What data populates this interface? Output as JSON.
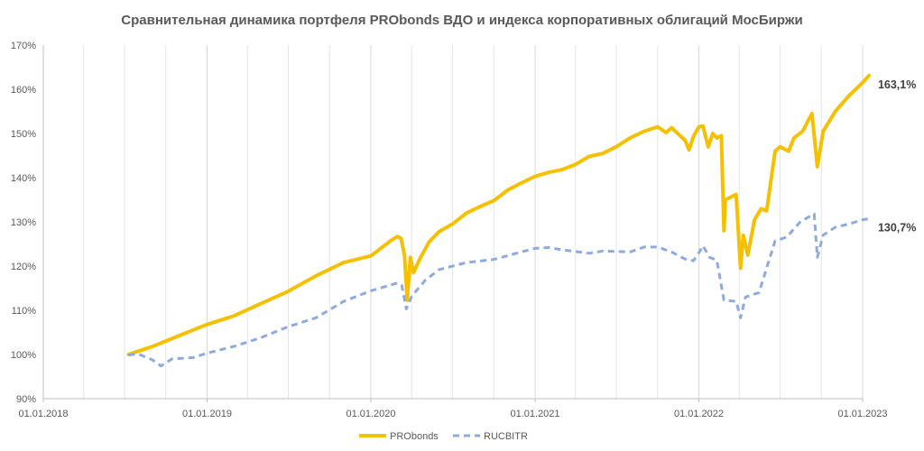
{
  "chart_data": {
    "type": "line",
    "title": "Сравнительная динамика портфеля PRObonds ВДО и индекса корпоративных облигаций МосБиржи",
    "xlabel": "",
    "ylabel": "",
    "x_range": [
      "2018-01-01",
      "2023-01-01"
    ],
    "x_ticks": [
      {
        "date": "2018-01-01",
        "label": "01.01.2018"
      },
      {
        "date": "2019-01-01",
        "label": "01.01.2019"
      },
      {
        "date": "2020-01-01",
        "label": "01.01.2020"
      },
      {
        "date": "2021-01-01",
        "label": "01.01.2021"
      },
      {
        "date": "2022-01-01",
        "label": "01.01.2022"
      },
      {
        "date": "2023-01-01",
        "label": "01.01.2023"
      }
    ],
    "ylim": [
      90,
      170
    ],
    "y_ticks": [
      {
        "value": 90,
        "label": "90%"
      },
      {
        "value": 100,
        "label": "100%"
      },
      {
        "value": 110,
        "label": "110%"
      },
      {
        "value": 120,
        "label": "120%"
      },
      {
        "value": 130,
        "label": "130%"
      },
      {
        "value": 140,
        "label": "140%"
      },
      {
        "value": 150,
        "label": "150%"
      },
      {
        "value": 160,
        "label": "160%"
      },
      {
        "value": 170,
        "label": "170%"
      }
    ],
    "grid": "vertical",
    "legend_position": "bottom",
    "series": [
      {
        "name": "PRObonds",
        "color": "#F5C000",
        "style": "solid",
        "end_label": "163,1%",
        "points": [
          [
            "2018-07-10",
            100.0
          ],
          [
            "2018-09-01",
            101.8
          ],
          [
            "2018-11-01",
            104.3
          ],
          [
            "2019-01-01",
            106.8
          ],
          [
            "2019-03-01",
            108.7
          ],
          [
            "2019-05-01",
            111.5
          ],
          [
            "2019-07-01",
            114.3
          ],
          [
            "2019-09-01",
            117.8
          ],
          [
            "2019-11-01",
            120.8
          ],
          [
            "2020-01-01",
            122.3
          ],
          [
            "2020-02-15",
            125.8
          ],
          [
            "2020-02-29",
            126.7
          ],
          [
            "2020-03-08",
            126.3
          ],
          [
            "2020-03-16",
            122.5
          ],
          [
            "2020-03-22",
            112.3
          ],
          [
            "2020-03-29",
            122.0
          ],
          [
            "2020-04-05",
            118.5
          ],
          [
            "2020-04-20",
            121.8
          ],
          [
            "2020-05-10",
            125.5
          ],
          [
            "2020-06-01",
            127.8
          ],
          [
            "2020-07-01",
            129.5
          ],
          [
            "2020-08-01",
            132.0
          ],
          [
            "2020-09-01",
            133.5
          ],
          [
            "2020-10-01",
            134.8
          ],
          [
            "2020-11-01",
            137.2
          ],
          [
            "2020-12-01",
            138.8
          ],
          [
            "2021-01-01",
            140.3
          ],
          [
            "2021-02-01",
            141.2
          ],
          [
            "2021-03-01",
            141.8
          ],
          [
            "2021-04-01",
            143.0
          ],
          [
            "2021-05-01",
            144.8
          ],
          [
            "2021-06-01",
            145.5
          ],
          [
            "2021-07-01",
            147.0
          ],
          [
            "2021-08-01",
            149.0
          ],
          [
            "2021-09-01",
            150.5
          ],
          [
            "2021-10-01",
            151.5
          ],
          [
            "2021-10-20",
            150.2
          ],
          [
            "2021-11-01",
            151.3
          ],
          [
            "2021-11-20",
            149.5
          ],
          [
            "2021-12-01",
            148.5
          ],
          [
            "2021-12-10",
            146.3
          ],
          [
            "2021-12-20",
            149.3
          ],
          [
            "2022-01-01",
            151.5
          ],
          [
            "2022-01-10",
            151.7
          ],
          [
            "2022-01-22",
            147.0
          ],
          [
            "2022-02-01",
            150.0
          ],
          [
            "2022-02-10",
            149.0
          ],
          [
            "2022-02-20",
            149.5
          ],
          [
            "2022-02-26",
            128.0
          ],
          [
            "2022-03-01",
            135.0
          ],
          [
            "2022-03-25",
            136.2
          ],
          [
            "2022-04-04",
            119.5
          ],
          [
            "2022-04-10",
            127.0
          ],
          [
            "2022-04-20",
            122.5
          ],
          [
            "2022-05-05",
            130.5
          ],
          [
            "2022-05-20",
            133.0
          ],
          [
            "2022-06-01",
            132.5
          ],
          [
            "2022-06-20",
            146.0
          ],
          [
            "2022-07-01",
            147.0
          ],
          [
            "2022-07-20",
            146.0
          ],
          [
            "2022-08-01",
            149.0
          ],
          [
            "2022-08-20",
            150.5
          ],
          [
            "2022-09-10",
            154.5
          ],
          [
            "2022-09-22",
            142.5
          ],
          [
            "2022-10-05",
            150.5
          ],
          [
            "2022-11-01",
            155.0
          ],
          [
            "2022-12-01",
            158.5
          ],
          [
            "2023-01-01",
            161.5
          ],
          [
            "2023-01-15",
            163.1
          ]
        ]
      },
      {
        "name": "RUCBITR",
        "color": "#8FAADC",
        "style": "dashed",
        "end_label": "130,7%",
        "points": [
          [
            "2018-07-10",
            99.9
          ],
          [
            "2018-08-01",
            100.1
          ],
          [
            "2018-09-01",
            98.8
          ],
          [
            "2018-09-20",
            97.4
          ],
          [
            "2018-10-15",
            99.0
          ],
          [
            "2018-12-01",
            99.3
          ],
          [
            "2019-01-01",
            100.3
          ],
          [
            "2019-03-01",
            101.8
          ],
          [
            "2019-05-01",
            103.8
          ],
          [
            "2019-07-01",
            106.3
          ],
          [
            "2019-09-01",
            108.3
          ],
          [
            "2019-11-01",
            112.0
          ],
          [
            "2020-01-01",
            114.4
          ],
          [
            "2020-03-01",
            116.2
          ],
          [
            "2020-03-10",
            115.6
          ],
          [
            "2020-03-20",
            110.3
          ],
          [
            "2020-04-01",
            113.2
          ],
          [
            "2020-05-01",
            116.8
          ],
          [
            "2020-06-01",
            119.2
          ],
          [
            "2020-08-01",
            120.8
          ],
          [
            "2020-10-01",
            121.5
          ],
          [
            "2020-12-01",
            123.2
          ],
          [
            "2021-01-01",
            124.0
          ],
          [
            "2021-02-01",
            124.2
          ],
          [
            "2021-03-01",
            123.7
          ],
          [
            "2021-04-01",
            123.3
          ],
          [
            "2021-05-01",
            122.9
          ],
          [
            "2021-06-01",
            123.4
          ],
          [
            "2021-08-01",
            123.2
          ],
          [
            "2021-09-01",
            124.3
          ],
          [
            "2021-10-01",
            124.3
          ],
          [
            "2021-11-01",
            123.2
          ],
          [
            "2021-12-01",
            121.6
          ],
          [
            "2021-12-20",
            121.2
          ],
          [
            "2022-01-01",
            123.0
          ],
          [
            "2022-01-10",
            124.6
          ],
          [
            "2022-01-25",
            122.0
          ],
          [
            "2022-02-10",
            121.3
          ],
          [
            "2022-02-26",
            112.3
          ],
          [
            "2022-03-25",
            112.0
          ],
          [
            "2022-04-04",
            108.3
          ],
          [
            "2022-04-15",
            113.0
          ],
          [
            "2022-05-15",
            114.0
          ],
          [
            "2022-06-20",
            125.7
          ],
          [
            "2022-07-15",
            126.5
          ],
          [
            "2022-08-15",
            130.0
          ],
          [
            "2022-09-01",
            131.0
          ],
          [
            "2022-09-15",
            131.8
          ],
          [
            "2022-09-22",
            122.0
          ],
          [
            "2022-10-05",
            127.0
          ],
          [
            "2022-11-01",
            128.8
          ],
          [
            "2022-12-01",
            129.5
          ],
          [
            "2023-01-01",
            130.5
          ],
          [
            "2023-01-15",
            130.7
          ]
        ]
      }
    ]
  }
}
